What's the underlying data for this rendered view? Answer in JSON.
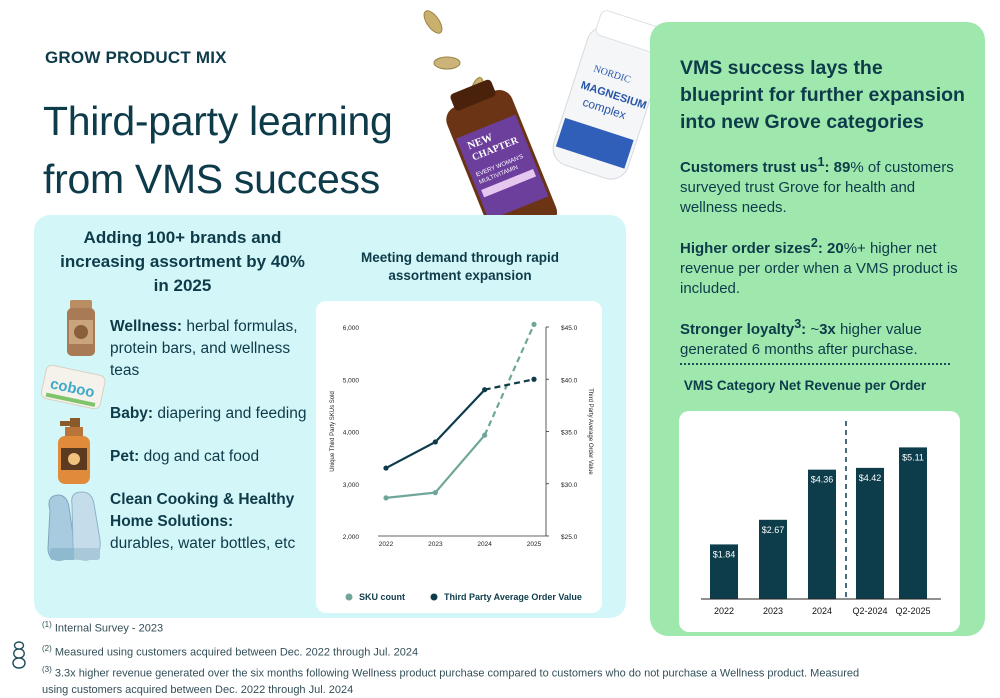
{
  "eyebrow": "GROW PRODUCT MIX",
  "title_line1": "Third-party learning",
  "title_line2": "from VMS success",
  "left_panel": {
    "heading": "Adding 100+ brands and increasing assortment by 40% in 2025",
    "categories": [
      {
        "label": "Wellness:",
        "text": "herbal formulas, protein bars, and wellness teas",
        "icon": "supplement-jar-icon"
      },
      {
        "label": "Baby:",
        "text": "diapering and feeding",
        "icon": "baby-wipes-icon"
      },
      {
        "label": "Pet:",
        "text": "dog and cat food",
        "icon": "pet-spray-bottle-icon"
      },
      {
        "label": "Clean Cooking & Healthy Home Solutions:",
        "text": "durables, water bottles, etc",
        "icon": "oven-mitts-icon"
      }
    ],
    "product_texts": {
      "baby_brand": "coboo"
    }
  },
  "line_chart_heading": "Meeting demand through rapid assortment expansion",
  "chart_data": [
    {
      "type": "line",
      "x": [
        "2022",
        "2023",
        "2024",
        "2025"
      ],
      "ylabel": "Unique Third Party SKUs Sold",
      "y2label": "Third Party Average Order Value",
      "ylim": [
        2000,
        6000
      ],
      "y2lim": [
        25.0,
        45.0
      ],
      "y_ticks": [
        "2,000",
        "3,000",
        "4,000",
        "5,000",
        "6,000"
      ],
      "y2_ticks": [
        "$25.0",
        "$30.0",
        "$35.0",
        "$40.0",
        "$45.0"
      ],
      "legend": "bottom",
      "series": [
        {
          "name": "SKU count",
          "axis": "left",
          "color": "#6fa699",
          "values": [
            2730,
            2830,
            3930,
            6050
          ],
          "projected_from_index": 2
        },
        {
          "name": "Third Party Average Order Value",
          "axis": "right",
          "color": "#0e3b4a",
          "values": [
            31.5,
            34.0,
            39.0,
            40.0
          ],
          "projected_from_index": 2
        }
      ]
    },
    {
      "type": "bar",
      "title": "VMS Category Net Revenue per Order",
      "categories": [
        "2022",
        "2023",
        "2024",
        "Q2-2024",
        "Q2-2025"
      ],
      "values": [
        1.84,
        2.67,
        4.36,
        4.42,
        5.11
      ],
      "data_labels": [
        "$1.84",
        "$2.67",
        "$4.36",
        "$4.42",
        "$5.11"
      ],
      "divider_after_index": 2,
      "ylim": [
        0,
        6
      ],
      "color": "#0d3c4b"
    }
  ],
  "right_panel": {
    "heading": "VMS success lays the blueprint for further expansion into new Grove categories",
    "stats": [
      {
        "label": "Customers trust us",
        "sup": "1",
        "label_suffix": ":",
        "value": "89",
        "text": "% of customers surveyed trust Grove for health and wellness needs."
      },
      {
        "label": "Higher order sizes",
        "sup": "2",
        "label_suffix": ":",
        "value": "20",
        "text": "%+ higher net revenue per order when a VMS product is included."
      },
      {
        "label": "Stronger loyalty",
        "sup": "3",
        "label_suffix": ":",
        "prefix": " ~",
        "value": "3x",
        "text": " higher value generated 6 months after purchase."
      }
    ]
  },
  "footnotes": [
    {
      "num": "(1)",
      "text": "Internal Survey - 2023"
    },
    {
      "num": "(2)",
      "text": "Measured using customers acquired between Dec. 2022 through Jul. 2024"
    },
    {
      "num": "(3)",
      "text": "3.3x higher revenue generated over the six months following Wellness product purchase compared to customers who do not purchase a Wellness product.  Measured using customers acquired between Dec. 2022 through Jul. 2024"
    }
  ],
  "bottles": {
    "amber_line1": "NEW",
    "amber_line2": "CHAPTER",
    "amber_line3": "EVERY WOMAN'S",
    "amber_line4": "MULTIVITAMIN",
    "white_line1": "NORDIC",
    "white_line2": "MAGNESIUM",
    "white_line3": "complex"
  },
  "colors": {
    "navy": "#0e3b4a",
    "cyan_panel": "#d3f6f8",
    "green_panel": "#9ee8ae",
    "sage": "#6fa699"
  }
}
